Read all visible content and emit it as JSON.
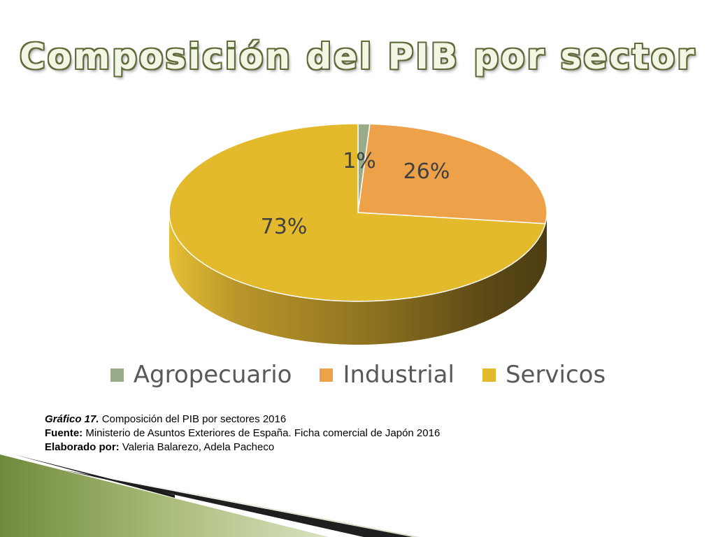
{
  "slide": {
    "title": "Composición del PIB por sector"
  },
  "chart_data": {
    "type": "pie",
    "style": "3d",
    "categories": [
      "Agropecuario",
      "Industrial",
      "Servicos"
    ],
    "values": [
      1,
      26,
      73
    ],
    "data_labels": [
      "1%",
      "26%",
      "73%"
    ],
    "colors": [
      "#9aab8a",
      "#eda24a",
      "#e3ba2c"
    ],
    "legend": "bottom"
  },
  "caption": {
    "line1_label": "Gráfico 17.",
    "line1_text": " Composición del PIB por sectores  2016",
    "line2_label": "Fuente:",
    "line2_text": " Ministerio de Asuntos Exteriores de España. Ficha comercial de Japón 2016",
    "line3_label": "Elaborado por:",
    "line3_text": " Valeria Balarezo, Adela Pacheco"
  }
}
